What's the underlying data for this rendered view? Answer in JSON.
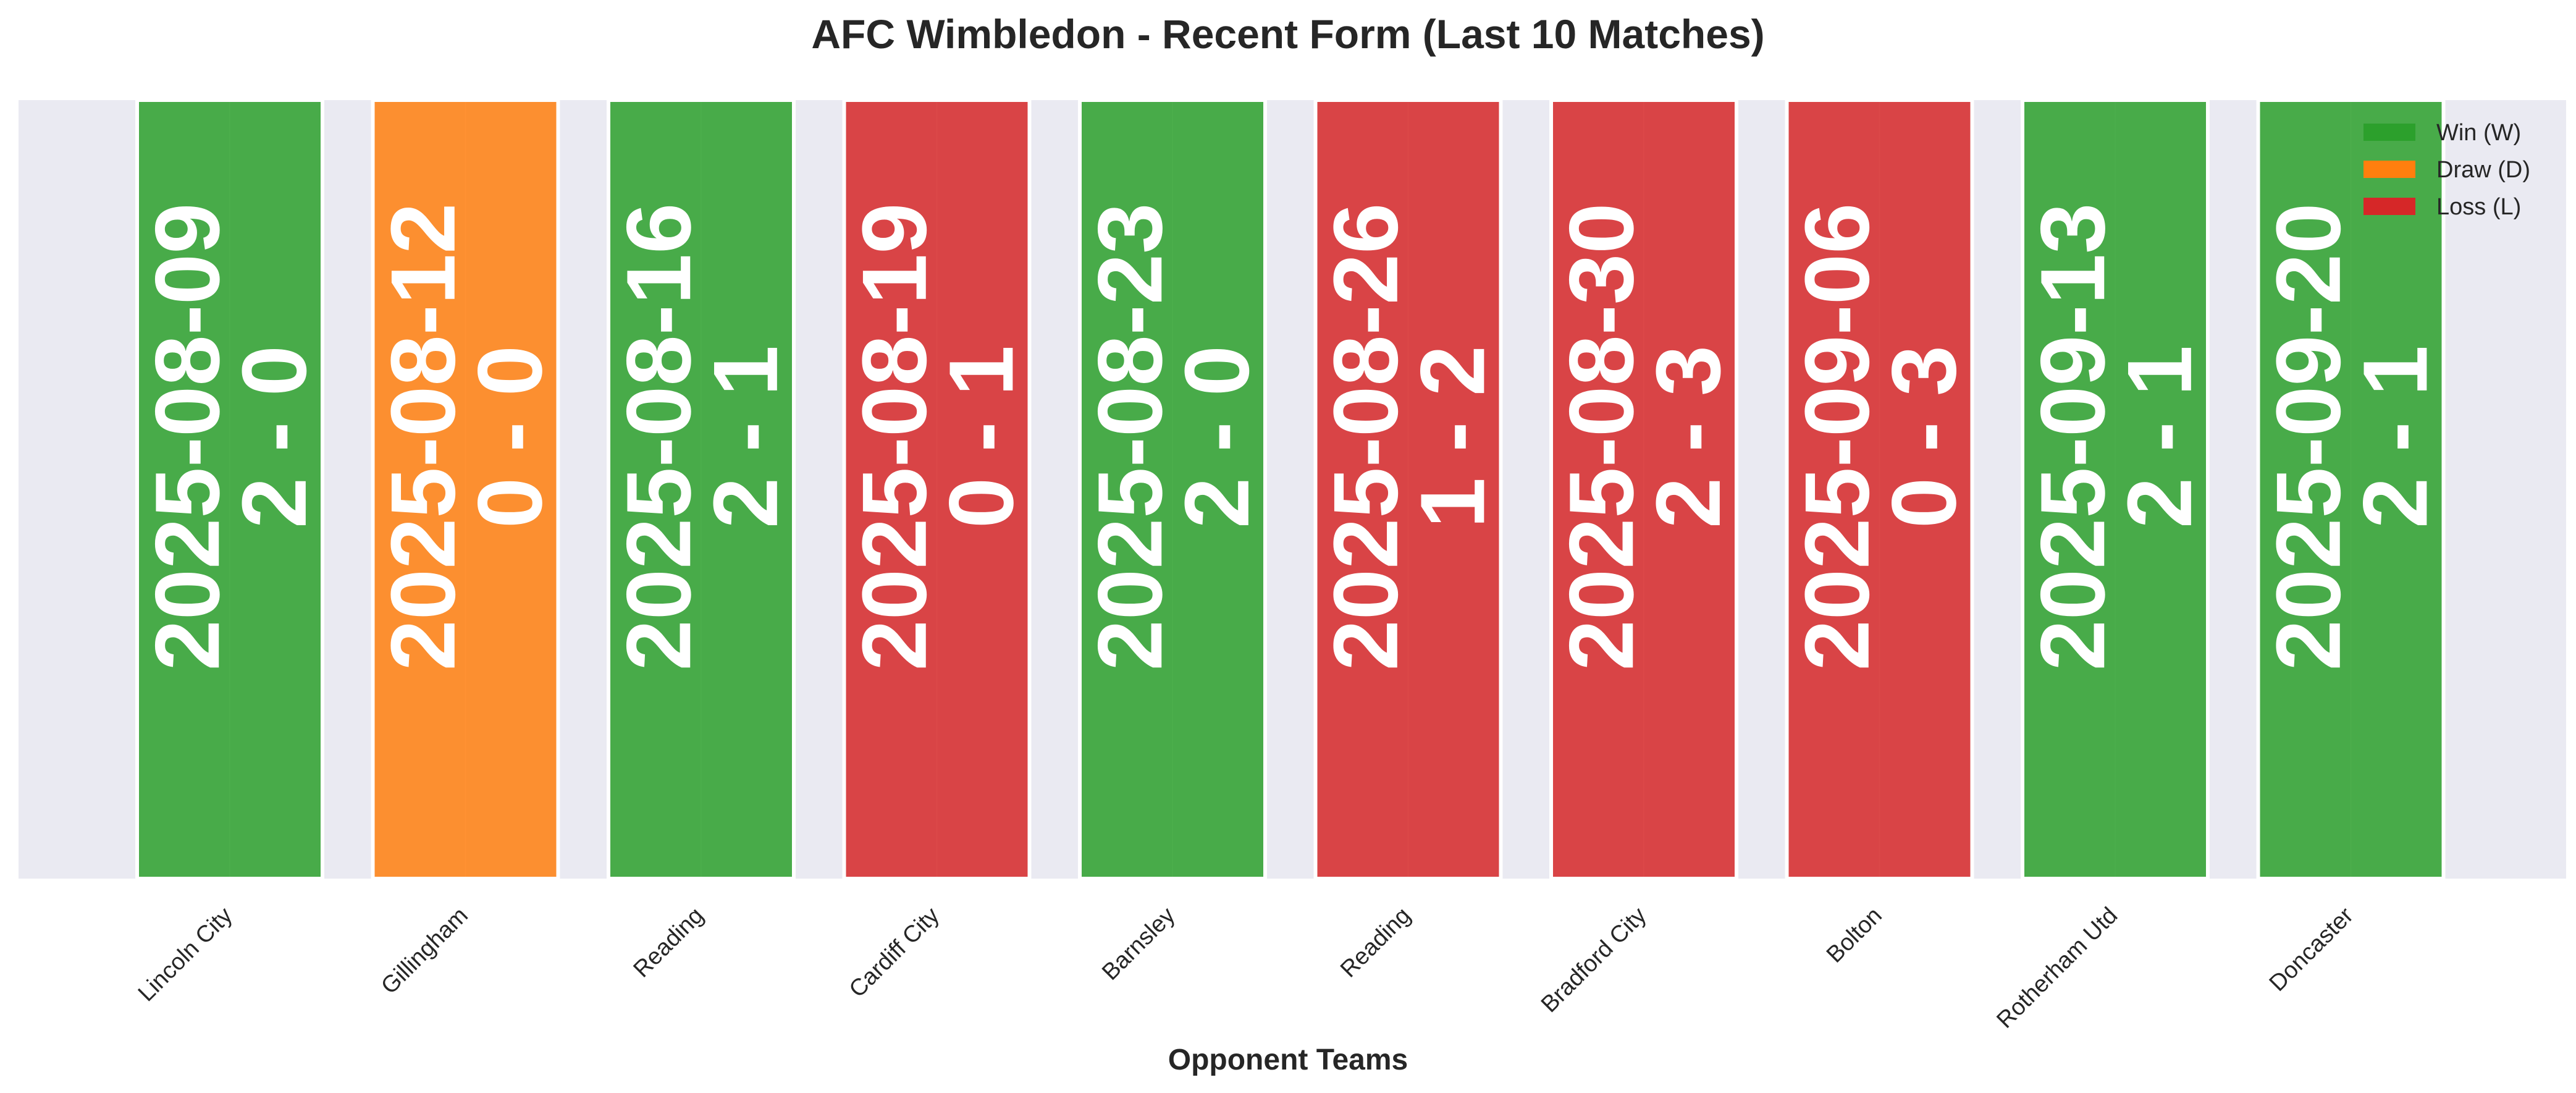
{
  "chart_data": {
    "type": "bar",
    "title": "AFC Wimbledon - Recent Form (Last 10 Matches)",
    "xlabel": "Opponent Teams",
    "ylabel": "",
    "categories": [
      "Lincoln City",
      "Gillingham",
      "Reading",
      "Cardiff City",
      "Barnsley",
      "Reading",
      "Bradford City",
      "Bolton",
      "Rotherham Utd",
      "Doncaster"
    ],
    "values": [
      1,
      1,
      1,
      1,
      1,
      1,
      1,
      1,
      1,
      1
    ],
    "dates": [
      "2025-08-09",
      "2025-08-12",
      "2025-08-16",
      "2025-08-19",
      "2025-08-23",
      "2025-08-26",
      "2025-08-30",
      "2025-09-06",
      "2025-09-13",
      "2025-09-20"
    ],
    "scores": [
      "2 - 0",
      "0 - 0",
      "2 - 1",
      "0 - 1",
      "2 - 0",
      "1 - 2",
      "2 - 3",
      "0 - 3",
      "2 - 1",
      "2 - 1"
    ],
    "results": [
      "W",
      "D",
      "W",
      "L",
      "W",
      "L",
      "L",
      "L",
      "W",
      "W"
    ],
    "colors": {
      "W": "#2ca02c",
      "D": "#ff7f0e",
      "L": "#d62728"
    },
    "legend": [
      {
        "key": "W",
        "label": "Win (W)"
      },
      {
        "key": "D",
        "label": "Draw (D)"
      },
      {
        "key": "L",
        "label": "Loss (L)"
      }
    ],
    "legend_position": "top-right",
    "y_ticks_visible": false,
    "grid": true
  }
}
